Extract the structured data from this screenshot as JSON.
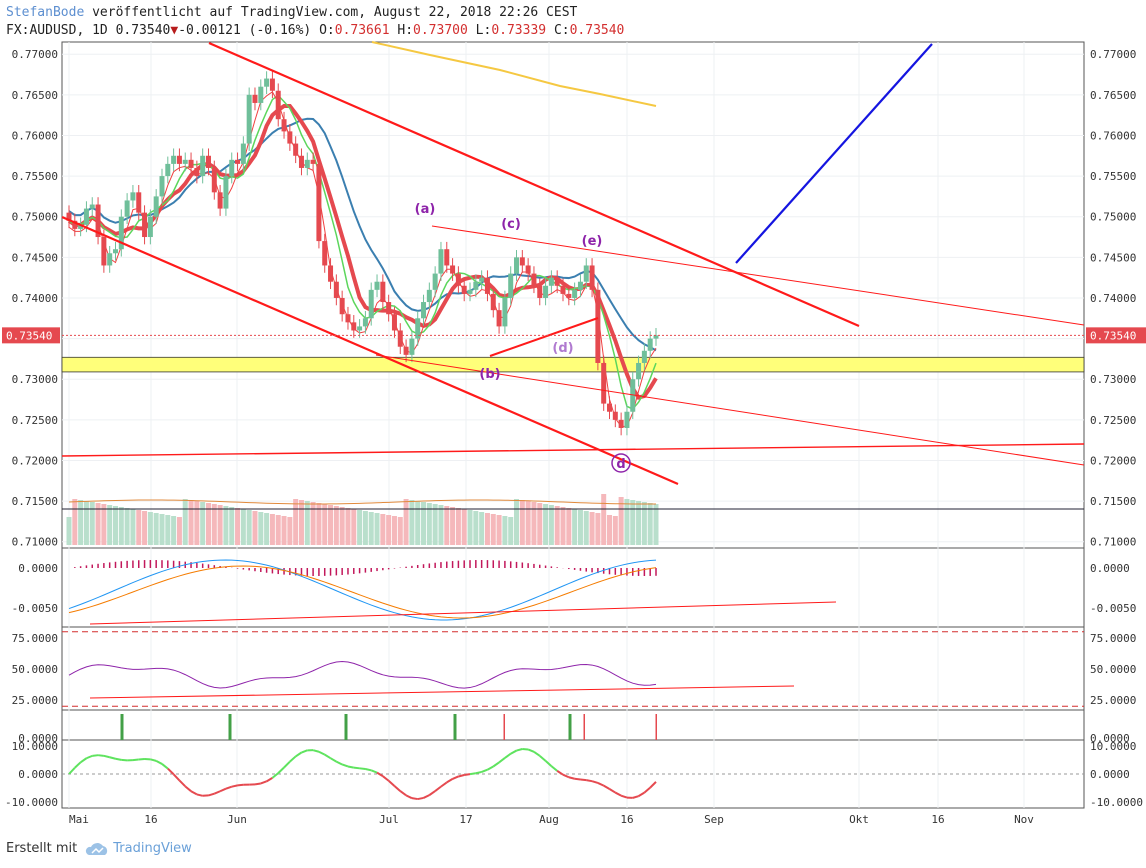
{
  "header": {
    "author": "StefanBode",
    "published": "veröffentlicht auf TradingView.com, August 22, 2018 22:26 CEST",
    "symbol": "FX:AUDUSD, 1D",
    "last": "0.73540",
    "change": "-0.00121 (-0.16%)",
    "o_label": "O:",
    "o_value": "0.73661",
    "h_label": "H:",
    "h_value": "0.73700",
    "l_label": "L:",
    "l_value": "0.73339",
    "c_label": "C:",
    "c_value": "0.73540"
  },
  "footer": {
    "created_with": "Erstellt mit",
    "brand": "TradingView"
  },
  "colors": {
    "up": "#6fbf9a",
    "down": "#e5494f",
    "trend": "#ff1a1a",
    "blue_line": "#1515e0",
    "ma_slow": "#f5c842",
    "ma_mid": "#3b7fb0",
    "zone": "#ffff7a"
  },
  "chart_data": {
    "type": "candlestick",
    "instrument": "AUDUSD",
    "timeframe": "1D",
    "last_price_label": "0.73540",
    "x_ticks": [
      "Mai",
      "16",
      "Jun",
      "Jul",
      "17",
      "Aug",
      "16",
      "Sep",
      "Okt",
      "16",
      "Nov"
    ],
    "price_axis": {
      "ticks": [
        "0.77000",
        "0.76500",
        "0.76000",
        "0.75500",
        "0.75000",
        "0.74500",
        "0.74000",
        "0.73500",
        "0.73000",
        "0.72500",
        "0.72000",
        "0.71500",
        "0.71000"
      ],
      "range": [
        0.7096,
        0.7715
      ]
    },
    "wave_labels": [
      "(a)",
      "(b)",
      "(c)",
      "(d)",
      "(e)",
      "d"
    ],
    "support_zone": [
      0.7309,
      0.7327
    ],
    "ohlc_close": [
      0.7495,
      0.7485,
      0.749,
      0.751,
      0.7515,
      0.7475,
      0.744,
      0.7455,
      0.746,
      0.75,
      0.752,
      0.753,
      0.7505,
      0.7475,
      0.75,
      0.7525,
      0.755,
      0.7565,
      0.7575,
      0.7565,
      0.757,
      0.756,
      0.755,
      0.7575,
      0.756,
      0.753,
      0.751,
      0.755,
      0.757,
      0.7565,
      0.759,
      0.765,
      0.764,
      0.766,
      0.767,
      0.7655,
      0.762,
      0.7605,
      0.759,
      0.7575,
      0.756,
      0.757,
      0.7565,
      0.747,
      0.744,
      0.742,
      0.74,
      0.738,
      0.737,
      0.736,
      0.7365,
      0.7375,
      0.741,
      0.742,
      0.7395,
      0.738,
      0.736,
      0.734,
      0.733,
      0.735,
      0.7375,
      0.7395,
      0.741,
      0.743,
      0.746,
      0.744,
      0.743,
      0.7415,
      0.7405,
      0.741,
      0.742,
      0.7425,
      0.7405,
      0.7385,
      0.7365,
      0.74,
      0.743,
      0.745,
      0.744,
      0.743,
      0.7415,
      0.74,
      0.7415,
      0.7425,
      0.7415,
      0.7405,
      0.74,
      0.741,
      0.742,
      0.744,
      0.741,
      0.732,
      0.727,
      0.726,
      0.725,
      0.724,
      0.726,
      0.73,
      0.732,
      0.7335,
      0.735,
      0.7354
    ],
    "macd": {
      "ticks": [
        "0.0000",
        "-0.0050"
      ]
    },
    "rsi": {
      "ticks": [
        "75.0000",
        "50.0000",
        "25.0000"
      ],
      "levels": [
        80,
        20
      ]
    },
    "signal": {
      "ticks": [
        "0.0000"
      ]
    },
    "momentum": {
      "ticks": [
        "10.0000",
        "0.0000",
        "-10.0000"
      ]
    }
  }
}
